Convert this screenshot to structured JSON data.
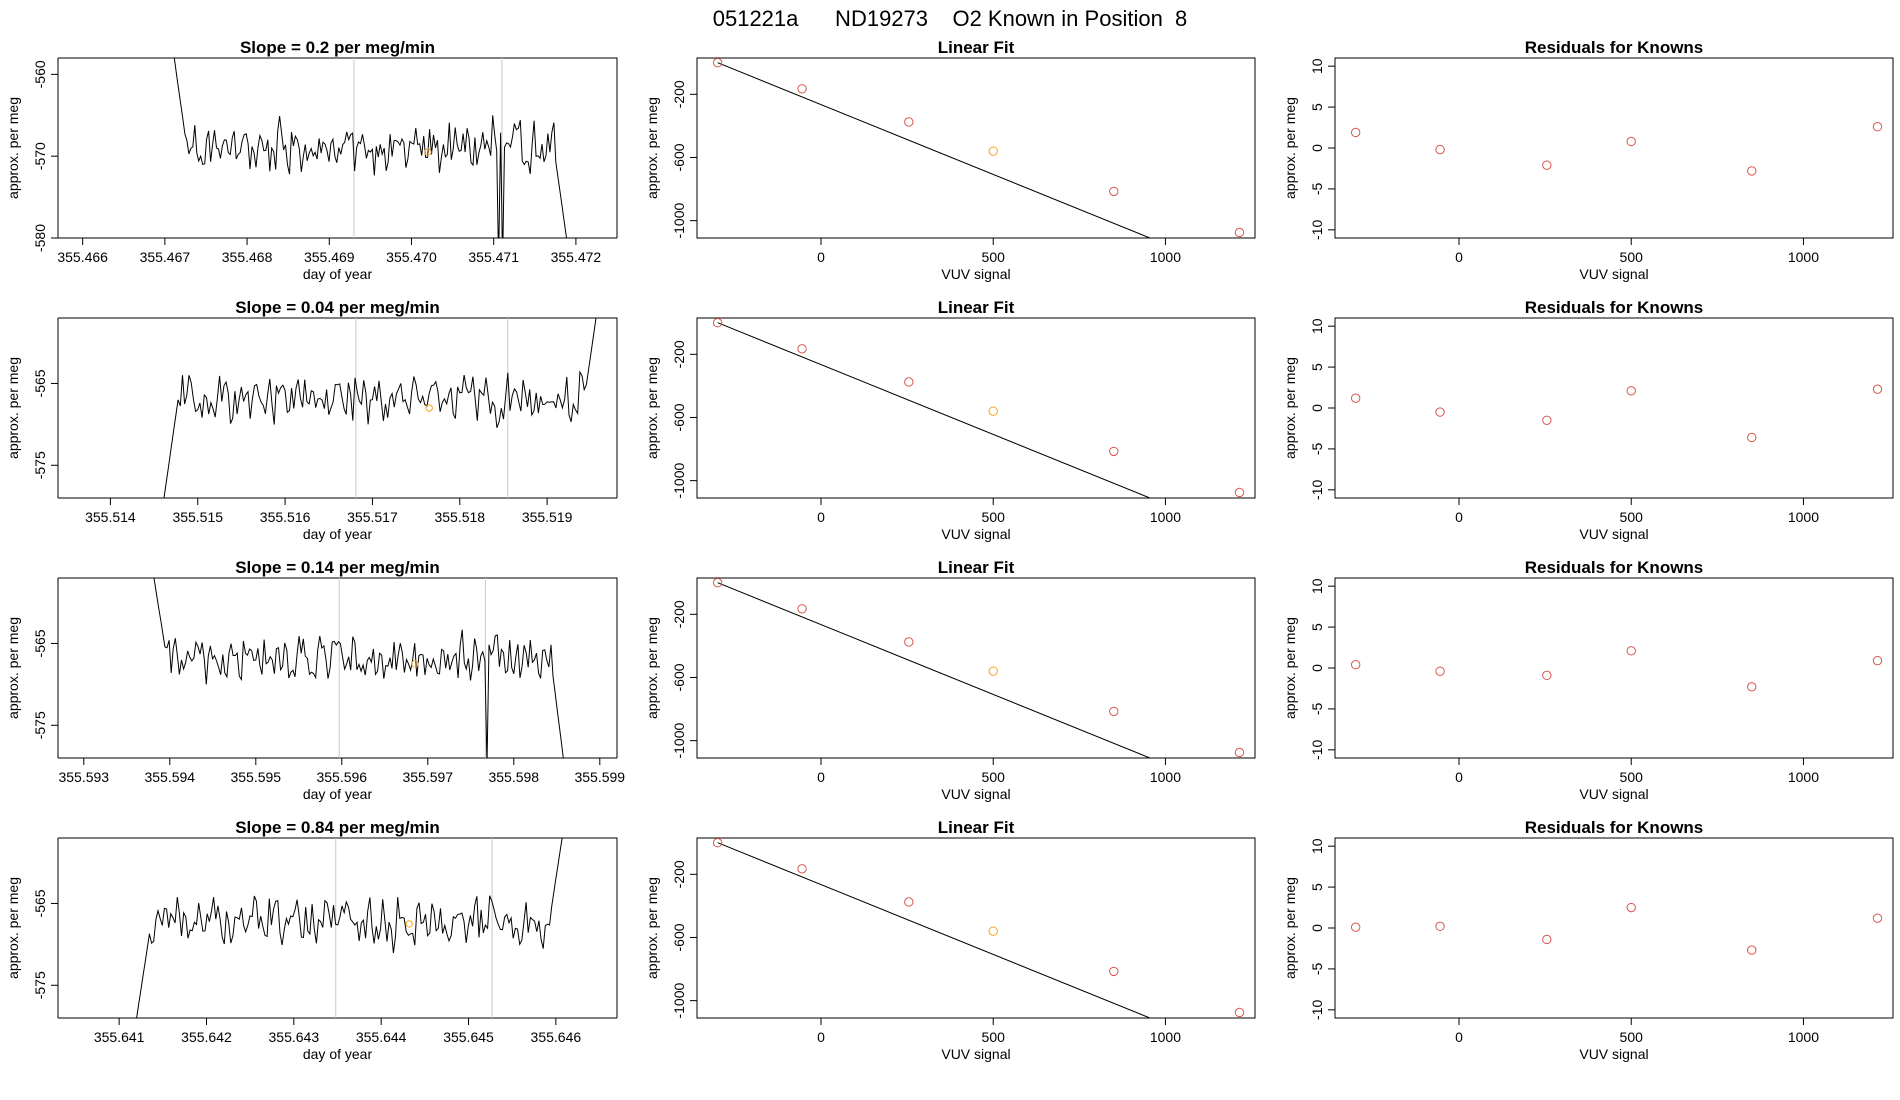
{
  "title": "051221a      ND19273    O2 Known in Position  8",
  "colors": {
    "background": "#ffffff",
    "axes": "#000000",
    "point": "#d9544d",
    "highlight": "#f5a623",
    "marker_line": "#c8c8c8"
  },
  "chart_data": [
    {
      "type": "line",
      "row": 1,
      "title": "Slope =  0.2  per meg/min",
      "xlabel": "day of year",
      "ylabel": "approx. per meg",
      "xlim": [
        355.4657,
        355.4725
      ],
      "ylim": [
        -580,
        -558
      ],
      "xticks": [
        355.466,
        355.467,
        355.468,
        355.469,
        355.47,
        355.471,
        355.472
      ],
      "xtick_labels": [
        "355.466",
        "355.467",
        "355.468",
        "355.469",
        "355.470",
        "355.471",
        "355.472"
      ],
      "yticks": [
        -560,
        -570,
        -580
      ],
      "ytick_labels": [
        "-560",
        "-570",
        "-580"
      ],
      "vlines": [
        355.4693,
        355.4711
      ],
      "marker": {
        "x": 355.4702,
        "y": -569.5
      },
      "trace": {
        "x_start": 355.4671,
        "x_end": 355.4719,
        "start_y": -557,
        "end_y": -581,
        "baseline": -569,
        "amplitude": 2.4,
        "spikes": [
          {
            "x": 355.471,
            "y": -565
          },
          {
            "x": 355.47105,
            "y": -583
          },
          {
            "x": 355.4711,
            "y": -583
          }
        ]
      }
    },
    {
      "type": "scatter",
      "row": 1,
      "title": "Linear Fit",
      "xlabel": "VUV signal",
      "ylabel": "approx. per meg",
      "xlim": [
        -360,
        1260
      ],
      "ylim": [
        -1110,
        30
      ],
      "xticks": [
        0,
        500,
        1000
      ],
      "xtick_labels": [
        "0",
        "500",
        "1000"
      ],
      "yticks": [
        -200,
        -600,
        -1000
      ],
      "ytick_labels": [
        "-200",
        "-600",
        "-1000"
      ],
      "x": [
        -300,
        -55,
        255,
        500,
        850,
        1215
      ],
      "y": [
        0,
        -165,
        -375,
        -560,
        -815,
        -1075
      ],
      "highlight_index": 3,
      "fit": {
        "slope": -0.8848,
        "intercept": -265
      }
    },
    {
      "type": "scatter",
      "row": 1,
      "title": "Residuals for Knowns",
      "xlabel": "VUV signal",
      "ylabel": "approx. per meg",
      "xlim": [
        -360,
        1260
      ],
      "ylim": [
        -11,
        11
      ],
      "xticks": [
        0,
        500,
        1000
      ],
      "xtick_labels": [
        "0",
        "500",
        "1000"
      ],
      "yticks": [
        10,
        5,
        0,
        -5,
        -10
      ],
      "ytick_labels": [
        "10",
        "5",
        "0",
        "-5",
        "-10"
      ],
      "x": [
        -300,
        -55,
        255,
        500,
        850,
        1215
      ],
      "y": [
        1.9,
        -0.2,
        -2.1,
        0.8,
        -2.8,
        2.6
      ]
    },
    {
      "type": "line",
      "row": 2,
      "title": "Slope =  0.04  per meg/min",
      "xlabel": "day of year",
      "ylabel": "approx. per meg",
      "xlim": [
        355.5134,
        355.5198
      ],
      "ylim": [
        -579,
        -557
      ],
      "xticks": [
        355.514,
        355.515,
        355.516,
        355.517,
        355.518,
        355.519
      ],
      "xtick_labels": [
        "355.514",
        "355.515",
        "355.516",
        "355.517",
        "355.518",
        "355.519"
      ],
      "yticks": [
        -565,
        -575
      ],
      "ytick_labels": [
        "-565",
        "-575"
      ],
      "vlines": [
        355.51681,
        355.51855
      ],
      "marker": {
        "x": 355.51765,
        "y": -568
      },
      "trace": {
        "x_start": 355.5146,
        "x_end": 355.5196,
        "start_y": -580,
        "end_y": -554,
        "baseline": -567,
        "amplitude": 2.6,
        "spikes": []
      }
    },
    {
      "type": "scatter",
      "row": 2,
      "title": "Linear Fit",
      "xlabel": "VUV signal",
      "ylabel": "approx. per meg",
      "xlim": [
        -360,
        1260
      ],
      "ylim": [
        -1110,
        30
      ],
      "xticks": [
        0,
        500,
        1000
      ],
      "xtick_labels": [
        "0",
        "500",
        "1000"
      ],
      "yticks": [
        -200,
        -600,
        -1000
      ],
      "ytick_labels": [
        "-200",
        "-600",
        "-1000"
      ],
      "x": [
        -300,
        -55,
        255,
        500,
        850,
        1215
      ],
      "y": [
        0,
        -165,
        -375,
        -560,
        -815,
        -1075
      ],
      "highlight_index": 3,
      "fit": {
        "slope": -0.8848,
        "intercept": -265
      }
    },
    {
      "type": "scatter",
      "row": 2,
      "title": "Residuals for Knowns",
      "xlabel": "VUV signal",
      "ylabel": "approx. per meg",
      "xlim": [
        -360,
        1260
      ],
      "ylim": [
        -11,
        11
      ],
      "xticks": [
        0,
        500,
        1000
      ],
      "xtick_labels": [
        "0",
        "500",
        "1000"
      ],
      "yticks": [
        10,
        5,
        0,
        -5,
        -10
      ],
      "ytick_labels": [
        "10",
        "5",
        "0",
        "-5",
        "-10"
      ],
      "x": [
        -300,
        -55,
        255,
        500,
        850,
        1215
      ],
      "y": [
        1.2,
        -0.5,
        -1.5,
        2.1,
        -3.6,
        2.3
      ]
    },
    {
      "type": "line",
      "row": 3,
      "title": "Slope =  0.14  per meg/min",
      "xlabel": "day of year",
      "ylabel": "approx. per meg",
      "xlim": [
        355.5927,
        355.5992
      ],
      "ylim": [
        -579,
        -557
      ],
      "xticks": [
        355.593,
        355.594,
        355.595,
        355.596,
        355.597,
        355.598,
        355.599
      ],
      "xtick_labels": [
        "355.593",
        "355.594",
        "355.595",
        "355.596",
        "355.597",
        "355.598",
        "355.599"
      ],
      "yticks": [
        -565,
        -575
      ],
      "ytick_labels": [
        "-565",
        "-575"
      ],
      "vlines": [
        355.59597,
        355.59767
      ],
      "marker": {
        "x": 355.59685,
        "y": -567.5
      },
      "trace": {
        "x_start": 355.5938,
        "x_end": 355.5986,
        "start_y": -556,
        "end_y": -581,
        "baseline": -567,
        "amplitude": 2.4,
        "spikes": [
          {
            "x": 355.5977,
            "y": -580
          }
        ]
      }
    },
    {
      "type": "scatter",
      "row": 3,
      "title": "Linear Fit",
      "xlabel": "VUV signal",
      "ylabel": "approx. per meg",
      "xlim": [
        -360,
        1260
      ],
      "ylim": [
        -1110,
        30
      ],
      "xticks": [
        0,
        500,
        1000
      ],
      "xtick_labels": [
        "0",
        "500",
        "1000"
      ],
      "yticks": [
        -200,
        -600,
        -1000
      ],
      "ytick_labels": [
        "-200",
        "-600",
        "-1000"
      ],
      "x": [
        -300,
        -55,
        255,
        500,
        850,
        1215
      ],
      "y": [
        0,
        -165,
        -375,
        -560,
        -815,
        -1075
      ],
      "highlight_index": 3,
      "fit": {
        "slope": -0.8848,
        "intercept": -265
      }
    },
    {
      "type": "scatter",
      "row": 3,
      "title": "Residuals for Knowns",
      "xlabel": "VUV signal",
      "ylabel": "approx. per meg",
      "xlim": [
        -360,
        1260
      ],
      "ylim": [
        -11,
        11
      ],
      "xticks": [
        0,
        500,
        1000
      ],
      "xtick_labels": [
        "0",
        "500",
        "1000"
      ],
      "yticks": [
        10,
        5,
        0,
        -5,
        -10
      ],
      "ytick_labels": [
        "10",
        "5",
        "0",
        "-5",
        "-10"
      ],
      "x": [
        -300,
        -55,
        255,
        500,
        850,
        1215
      ],
      "y": [
        0.4,
        -0.4,
        -0.9,
        2.1,
        -2.3,
        0.9
      ]
    },
    {
      "type": "line",
      "row": 4,
      "title": "Slope =  0.84  per meg/min",
      "xlabel": "day of year",
      "ylabel": "approx. per meg",
      "xlim": [
        355.6403,
        355.6467
      ],
      "ylim": [
        -579,
        -557
      ],
      "xticks": [
        355.641,
        355.642,
        355.643,
        355.644,
        355.645,
        355.646
      ],
      "xtick_labels": [
        "355.641",
        "355.642",
        "355.643",
        "355.644",
        "355.645",
        "355.646"
      ],
      "yticks": [
        -565,
        -575
      ],
      "ytick_labels": [
        "-565",
        "-575"
      ],
      "vlines": [
        355.64348,
        355.64527
      ],
      "marker": {
        "x": 355.64432,
        "y": -567.5
      },
      "trace": {
        "x_start": 355.6412,
        "x_end": 355.6461,
        "start_y": -579,
        "end_y": -555,
        "baseline": -567,
        "amplitude": 2.6,
        "spikes": []
      }
    },
    {
      "type": "scatter",
      "row": 4,
      "title": "Linear Fit",
      "xlabel": "VUV signal",
      "ylabel": "approx. per meg",
      "xlim": [
        -360,
        1260
      ],
      "ylim": [
        -1110,
        30
      ],
      "xticks": [
        0,
        500,
        1000
      ],
      "xtick_labels": [
        "0",
        "500",
        "1000"
      ],
      "yticks": [
        -200,
        -600,
        -1000
      ],
      "ytick_labels": [
        "-200",
        "-600",
        "-1000"
      ],
      "x": [
        -300,
        -55,
        255,
        500,
        850,
        1215
      ],
      "y": [
        0,
        -165,
        -375,
        -560,
        -815,
        -1075
      ],
      "highlight_index": 3,
      "fit": {
        "slope": -0.8848,
        "intercept": -265
      }
    },
    {
      "type": "scatter",
      "row": 4,
      "title": "Residuals for Knowns",
      "xlabel": "VUV signal",
      "ylabel": "approx. per meg",
      "xlim": [
        -360,
        1260
      ],
      "ylim": [
        -11,
        11
      ],
      "xticks": [
        0,
        500,
        1000
      ],
      "xtick_labels": [
        "0",
        "500",
        "1000"
      ],
      "yticks": [
        10,
        5,
        0,
        -5,
        -10
      ],
      "ytick_labels": [
        "10",
        "5",
        "0",
        "-5",
        "-10"
      ],
      "x": [
        -300,
        -55,
        255,
        500,
        850,
        1215
      ],
      "y": [
        0.1,
        0.2,
        -1.4,
        2.5,
        -2.7,
        1.2
      ]
    }
  ]
}
